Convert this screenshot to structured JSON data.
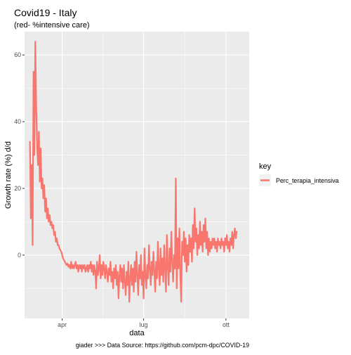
{
  "chart_data": {
    "type": "line",
    "title": "Covid19 - Italy",
    "subtitle": "(red- %intensive care)",
    "xlabel": "data",
    "ylabel": "Growth rate (%) d/d",
    "caption": "giader >>> Data Source: https://github.com/pcm-dpc/COVID-19",
    "legend": {
      "title": "key",
      "placement": "right"
    },
    "x_ticks": [
      {
        "date": "2020-04-01",
        "label": "apr"
      },
      {
        "date": "2020-07-01",
        "label": "lug"
      },
      {
        "date": "2020-10-01",
        "label": "ott"
      }
    ],
    "y_ticks": [
      0,
      20,
      40,
      60
    ],
    "xlim": [
      "2020-02-19",
      "2020-10-27"
    ],
    "ylim": [
      -19,
      67
    ],
    "grid": true,
    "series": [
      {
        "name": "Perc_terapia_intensiva",
        "color": "#F8766D",
        "points": [
          [
            "2020-02-25",
            34
          ],
          [
            "2020-02-26",
            11
          ],
          [
            "2020-02-27",
            27
          ],
          [
            "2020-02-28",
            3
          ],
          [
            "2020-02-29",
            55
          ],
          [
            "2020-03-01",
            30
          ],
          [
            "2020-03-02",
            64
          ],
          [
            "2020-03-03",
            45
          ],
          [
            "2020-03-04",
            33
          ],
          [
            "2020-03-05",
            27
          ],
          [
            "2020-03-06",
            37
          ],
          [
            "2020-03-07",
            22
          ],
          [
            "2020-03-08",
            32
          ],
          [
            "2020-03-09",
            20
          ],
          [
            "2020-03-10",
            23
          ],
          [
            "2020-03-11",
            17
          ],
          [
            "2020-03-12",
            21
          ],
          [
            "2020-03-13",
            13
          ],
          [
            "2020-03-14",
            17
          ],
          [
            "2020-03-15",
            11
          ],
          [
            "2020-03-16",
            14
          ],
          [
            "2020-03-17",
            10
          ],
          [
            "2020-03-18",
            12
          ],
          [
            "2020-03-19",
            9
          ],
          [
            "2020-03-20",
            10
          ],
          [
            "2020-03-21",
            8
          ],
          [
            "2020-03-22",
            9
          ],
          [
            "2020-03-23",
            6
          ],
          [
            "2020-03-24",
            7
          ],
          [
            "2020-03-25",
            4
          ],
          [
            "2020-03-26",
            5
          ],
          [
            "2020-03-27",
            3
          ],
          [
            "2020-03-28",
            3
          ],
          [
            "2020-03-29",
            2
          ],
          [
            "2020-03-30",
            1.5
          ],
          [
            "2020-03-31",
            1
          ],
          [
            "2020-04-01",
            0
          ],
          [
            "2020-04-02",
            -1
          ],
          [
            "2020-04-03",
            -1.5
          ],
          [
            "2020-04-04",
            -2
          ],
          [
            "2020-04-05",
            -2.5
          ],
          [
            "2020-04-06",
            -3
          ],
          [
            "2020-04-07",
            -2.5
          ],
          [
            "2020-04-08",
            -3.5
          ],
          [
            "2020-04-09",
            -3
          ],
          [
            "2020-04-10",
            -4
          ],
          [
            "2020-04-11",
            -2
          ],
          [
            "2020-04-12",
            -4
          ],
          [
            "2020-04-13",
            -3
          ],
          [
            "2020-04-14",
            -4
          ],
          [
            "2020-04-15",
            -3
          ],
          [
            "2020-04-16",
            -2
          ],
          [
            "2020-04-17",
            -4
          ],
          [
            "2020-04-18",
            -3
          ],
          [
            "2020-04-19",
            -5
          ],
          [
            "2020-04-20",
            -3
          ],
          [
            "2020-04-21",
            -4
          ],
          [
            "2020-04-22",
            -3
          ],
          [
            "2020-04-23",
            -5
          ],
          [
            "2020-04-24",
            -3
          ],
          [
            "2020-04-25",
            -4
          ],
          [
            "2020-04-26",
            -3
          ],
          [
            "2020-04-27",
            -5
          ],
          [
            "2020-04-28",
            -4
          ],
          [
            "2020-04-29",
            -3
          ],
          [
            "2020-04-30",
            -5
          ],
          [
            "2020-05-01",
            -3
          ],
          [
            "2020-05-02",
            -4
          ],
          [
            "2020-05-03",
            -2
          ],
          [
            "2020-05-04",
            -5
          ],
          [
            "2020-05-05",
            -3
          ],
          [
            "2020-05-06",
            -6
          ],
          [
            "2020-05-07",
            -3
          ],
          [
            "2020-05-08",
            -5
          ],
          [
            "2020-05-09",
            -10
          ],
          [
            "2020-05-10",
            -2
          ],
          [
            "2020-05-11",
            -6
          ],
          [
            "2020-05-12",
            -4
          ],
          [
            "2020-05-13",
            0
          ],
          [
            "2020-05-14",
            -7
          ],
          [
            "2020-05-15",
            -3
          ],
          [
            "2020-05-16",
            -6
          ],
          [
            "2020-05-17",
            -2
          ],
          [
            "2020-05-18",
            -4
          ],
          [
            "2020-05-19",
            -7
          ],
          [
            "2020-05-20",
            -3
          ],
          [
            "2020-05-21",
            -5
          ],
          [
            "2020-05-22",
            -8
          ],
          [
            "2020-05-23",
            -4
          ],
          [
            "2020-05-24",
            -6
          ],
          [
            "2020-05-25",
            -2
          ],
          [
            "2020-05-26",
            -8
          ],
          [
            "2020-05-27",
            -5
          ],
          [
            "2020-05-28",
            -10
          ],
          [
            "2020-05-29",
            -4
          ],
          [
            "2020-05-30",
            -7
          ],
          [
            "2020-05-31",
            -3
          ],
          [
            "2020-06-01",
            -9
          ],
          [
            "2020-06-02",
            -5
          ],
          [
            "2020-06-03",
            -13
          ],
          [
            "2020-06-04",
            -6
          ],
          [
            "2020-06-05",
            -3
          ],
          [
            "2020-06-06",
            -8
          ],
          [
            "2020-06-07",
            -4
          ],
          [
            "2020-06-08",
            -10
          ],
          [
            "2020-06-09",
            -3
          ],
          [
            "2020-06-10",
            -8
          ],
          [
            "2020-06-11",
            -12
          ],
          [
            "2020-06-12",
            -5
          ],
          [
            "2020-06-13",
            -9
          ],
          [
            "2020-06-14",
            -2
          ],
          [
            "2020-06-15",
            -14
          ],
          [
            "2020-06-16",
            -7
          ],
          [
            "2020-06-17",
            -3
          ],
          [
            "2020-06-18",
            -9
          ],
          [
            "2020-06-19",
            -4
          ],
          [
            "2020-06-20",
            -11
          ],
          [
            "2020-06-21",
            -2
          ],
          [
            "2020-06-22",
            -8
          ],
          [
            "2020-06-23",
            1
          ],
          [
            "2020-06-24",
            -6
          ],
          [
            "2020-06-25",
            -12
          ],
          [
            "2020-06-26",
            -3
          ],
          [
            "2020-06-27",
            -7
          ],
          [
            "2020-06-28",
            0
          ],
          [
            "2020-06-29",
            -9
          ],
          [
            "2020-06-30",
            -5
          ],
          [
            "2020-07-01",
            -13
          ],
          [
            "2020-07-02",
            2
          ],
          [
            "2020-07-03",
            -6
          ],
          [
            "2020-07-04",
            -10
          ],
          [
            "2020-07-05",
            -3
          ],
          [
            "2020-07-06",
            -7
          ],
          [
            "2020-07-07",
            3
          ],
          [
            "2020-07-08",
            -4
          ],
          [
            "2020-07-09",
            -9
          ],
          [
            "2020-07-10",
            -2
          ],
          [
            "2020-07-11",
            -6
          ],
          [
            "2020-07-12",
            1
          ],
          [
            "2020-07-13",
            -5
          ],
          [
            "2020-07-14",
            -11
          ],
          [
            "2020-07-15",
            -2
          ],
          [
            "2020-07-16",
            -7
          ],
          [
            "2020-07-17",
            4
          ],
          [
            "2020-07-18",
            -4
          ],
          [
            "2020-07-19",
            -9
          ],
          [
            "2020-07-20",
            2
          ],
          [
            "2020-07-21",
            -6
          ],
          [
            "2020-07-22",
            -1
          ],
          [
            "2020-07-23",
            -8
          ],
          [
            "2020-07-24",
            3
          ],
          [
            "2020-07-25",
            -4
          ],
          [
            "2020-07-26",
            -11
          ],
          [
            "2020-07-27",
            6
          ],
          [
            "2020-07-28",
            -3
          ],
          [
            "2020-07-29",
            -9
          ],
          [
            "2020-07-30",
            2
          ],
          [
            "2020-07-31",
            -5
          ],
          [
            "2020-08-01",
            7
          ],
          [
            "2020-08-02",
            -2
          ],
          [
            "2020-08-03",
            -8
          ],
          [
            "2020-08-04",
            0
          ],
          [
            "2020-08-05",
            -4
          ],
          [
            "2020-08-06",
            23
          ],
          [
            "2020-08-07",
            -10
          ],
          [
            "2020-08-08",
            5
          ],
          [
            "2020-08-09",
            -4
          ],
          [
            "2020-08-10",
            8
          ],
          [
            "2020-08-11",
            -6
          ],
          [
            "2020-08-12",
            -14
          ],
          [
            "2020-08-13",
            4
          ],
          [
            "2020-08-14",
            0
          ],
          [
            "2020-08-15",
            7
          ],
          [
            "2020-08-16",
            -2
          ],
          [
            "2020-08-17",
            5
          ],
          [
            "2020-08-18",
            -5
          ],
          [
            "2020-08-19",
            3
          ],
          [
            "2020-08-20",
            -3
          ],
          [
            "2020-08-21",
            6
          ],
          [
            "2020-08-22",
            1
          ],
          [
            "2020-08-23",
            5
          ],
          [
            "2020-08-24",
            -2
          ],
          [
            "2020-08-25",
            9
          ],
          [
            "2020-08-26",
            2
          ],
          [
            "2020-08-27",
            14
          ],
          [
            "2020-08-28",
            4
          ],
          [
            "2020-08-29",
            8
          ],
          [
            "2020-08-30",
            0
          ],
          [
            "2020-08-31",
            6
          ],
          [
            "2020-09-01",
            2
          ],
          [
            "2020-09-02",
            10
          ],
          [
            "2020-09-03",
            3
          ],
          [
            "2020-09-04",
            7
          ],
          [
            "2020-09-05",
            1
          ],
          [
            "2020-09-06",
            9
          ],
          [
            "2020-09-07",
            4
          ],
          [
            "2020-09-08",
            11
          ],
          [
            "2020-09-09",
            2
          ],
          [
            "2020-09-10",
            7
          ],
          [
            "2020-09-11",
            0
          ],
          [
            "2020-09-12",
            5
          ],
          [
            "2020-09-13",
            1
          ],
          [
            "2020-09-14",
            4
          ],
          [
            "2020-09-15",
            2
          ],
          [
            "2020-09-16",
            5
          ],
          [
            "2020-09-17",
            3
          ],
          [
            "2020-09-18",
            5
          ],
          [
            "2020-09-19",
            2
          ],
          [
            "2020-09-20",
            4
          ],
          [
            "2020-09-21",
            1
          ],
          [
            "2020-09-22",
            5
          ],
          [
            "2020-09-23",
            3
          ],
          [
            "2020-09-24",
            4
          ],
          [
            "2020-09-25",
            2
          ],
          [
            "2020-09-26",
            5
          ],
          [
            "2020-09-27",
            3
          ],
          [
            "2020-09-28",
            4
          ],
          [
            "2020-09-29",
            1
          ],
          [
            "2020-09-30",
            5
          ],
          [
            "2020-10-01",
            3
          ],
          [
            "2020-10-02",
            6
          ],
          [
            "2020-10-03",
            2
          ],
          [
            "2020-10-04",
            4
          ],
          [
            "2020-10-05",
            1
          ],
          [
            "2020-10-06",
            5
          ],
          [
            "2020-10-07",
            3
          ],
          [
            "2020-10-08",
            7
          ],
          [
            "2020-10-09",
            2
          ],
          [
            "2020-10-10",
            6
          ],
          [
            "2020-10-11",
            8
          ],
          [
            "2020-10-12",
            5
          ],
          [
            "2020-10-13",
            7
          ]
        ]
      }
    ]
  }
}
